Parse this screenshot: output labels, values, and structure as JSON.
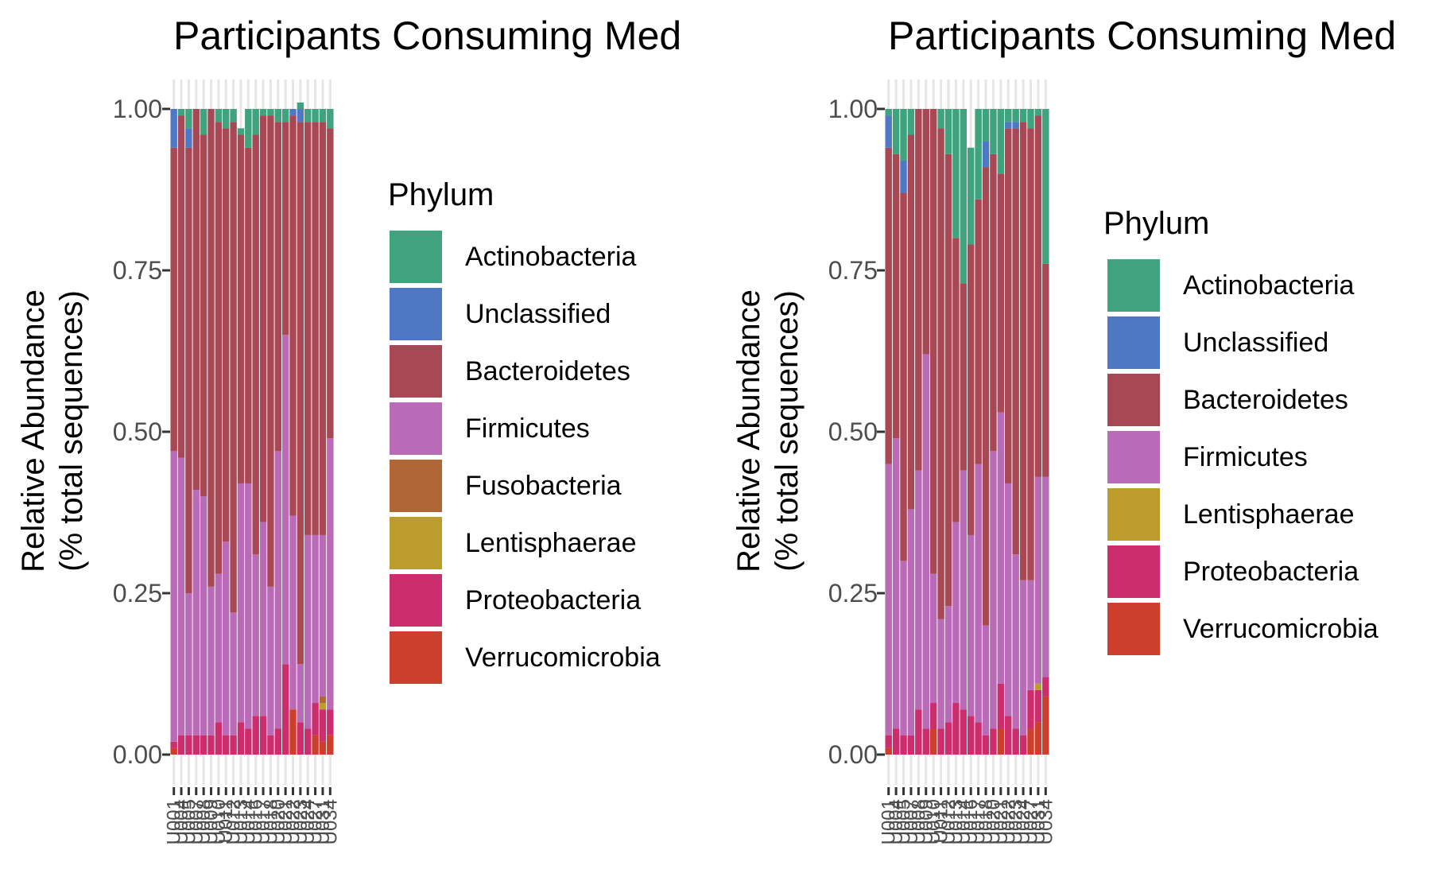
{
  "chart_data": [
    {
      "type": "bar",
      "stacked": true,
      "title": "Participants Consuming Med",
      "ylabel_line1": "Relative Abundance",
      "ylabel_line2": "(% total sequences)",
      "ylim": [
        0,
        1
      ],
      "yticks": [
        "0.00",
        "0.25",
        "0.50",
        "0.75",
        "1.00"
      ],
      "grid": true,
      "legend_position": "right",
      "legend_title": "Phylum",
      "legend": [
        {
          "name": "Actinobacteria",
          "color": "#3FA37D"
        },
        {
          "name": "Unclassified",
          "color": "#4F78C4"
        },
        {
          "name": "Bacteroidetes",
          "color": "#A84855"
        },
        {
          "name": "Firmicutes",
          "color": "#B96BB7"
        },
        {
          "name": "Fusobacteria",
          "color": "#B06636"
        },
        {
          "name": "Lentisphaerae",
          "color": "#BB9C2D"
        },
        {
          "name": "Proteobacteria",
          "color": "#CC2D6C"
        },
        {
          "name": "Verrucomicrobia",
          "color": "#CC3F2C"
        }
      ],
      "stack_order_bottom_to_top": [
        "Verrucomicrobia",
        "Proteobacteria",
        "Lentisphaerae",
        "Fusobacteria",
        "Firmicutes",
        "Bacteroidetes",
        "Unclassified",
        "Actinobacteria"
      ],
      "categories": [
        "U001",
        "U004",
        "U005",
        "U007",
        "U008",
        "U009",
        "U010",
        "U011",
        "U012",
        "U013",
        "U014",
        "U016",
        "U017",
        "U018",
        "U020",
        "U021",
        "U022",
        "U023",
        "U024",
        "U027",
        "U031",
        "U034"
      ],
      "series": [
        {
          "name": "Verrucomicrobia",
          "values": [
            0.01,
            0.0,
            0.0,
            0.0,
            0.0,
            0.0,
            0.0,
            0.0,
            0.0,
            0.0,
            0.0,
            0.0,
            0.0,
            0.0,
            0.0,
            0.0,
            0.07,
            0.0,
            0.0,
            0.03,
            0.02,
            0.03
          ]
        },
        {
          "name": "Proteobacteria",
          "values": [
            0.01,
            0.03,
            0.03,
            0.03,
            0.03,
            0.03,
            0.05,
            0.03,
            0.03,
            0.05,
            0.04,
            0.06,
            0.06,
            0.03,
            0.04,
            0.14,
            0.0,
            0.05,
            0.04,
            0.05,
            0.05,
            0.04
          ]
        },
        {
          "name": "Lentisphaerae",
          "values": [
            0,
            0,
            0,
            0,
            0,
            0,
            0,
            0,
            0,
            0,
            0,
            0,
            0,
            0,
            0,
            0,
            0,
            0,
            0,
            0,
            0.01,
            0
          ]
        },
        {
          "name": "Fusobacteria",
          "values": [
            0,
            0,
            0,
            0,
            0,
            0,
            0,
            0,
            0,
            0,
            0,
            0,
            0,
            0,
            0,
            0,
            0,
            0,
            0,
            0,
            0.01,
            0
          ]
        },
        {
          "name": "Firmicutes",
          "values": [
            0.45,
            0.43,
            0.22,
            0.38,
            0.37,
            0.23,
            0.23,
            0.3,
            0.19,
            0.37,
            0.38,
            0.25,
            0.3,
            0.23,
            0.43,
            0.51,
            0.3,
            0.09,
            0.3,
            0.26,
            0.25,
            0.42
          ]
        },
        {
          "name": "Bacteroidetes",
          "values": [
            0.47,
            0.53,
            0.69,
            0.59,
            0.56,
            0.74,
            0.7,
            0.64,
            0.76,
            0.54,
            0.52,
            0.65,
            0.63,
            0.73,
            0.51,
            0.33,
            0.62,
            0.84,
            0.64,
            0.64,
            0.64,
            0.48
          ]
        },
        {
          "name": "Unclassified",
          "values": [
            0.06,
            0.0,
            0.03,
            0.0,
            0.0,
            0.0,
            0.0,
            0.0,
            0.0,
            0.0,
            0.0,
            0.0,
            0.0,
            0.0,
            0.0,
            0.0,
            0.01,
            0.02,
            0.0,
            0.0,
            0.0,
            0.0
          ]
        },
        {
          "name": "Actinobacteria",
          "values": [
            0.0,
            0.01,
            0.03,
            0.0,
            0.04,
            0.0,
            0.02,
            0.03,
            0.02,
            0.01,
            0.06,
            0.04,
            0.01,
            0.01,
            0.02,
            0.02,
            0.0,
            0.01,
            0.02,
            0.02,
            0.02,
            0.03
          ]
        }
      ]
    },
    {
      "type": "bar",
      "stacked": true,
      "title": "Participants Consuming Med",
      "ylabel_line1": "Relative Abundance",
      "ylabel_line2": "(% total sequences)",
      "ylim": [
        0,
        1
      ],
      "yticks": [
        "0.00",
        "0.25",
        "0.50",
        "0.75",
        "1.00"
      ],
      "grid": true,
      "legend_position": "right",
      "legend_title": "Phylum",
      "legend": [
        {
          "name": "Actinobacteria",
          "color": "#3FA37D"
        },
        {
          "name": "Unclassified",
          "color": "#4F78C4"
        },
        {
          "name": "Bacteroidetes",
          "color": "#A84855"
        },
        {
          "name": "Firmicutes",
          "color": "#B96BB7"
        },
        {
          "name": "Lentisphaerae",
          "color": "#BB9C2D"
        },
        {
          "name": "Proteobacteria",
          "color": "#CC2D6C"
        },
        {
          "name": "Verrucomicrobia",
          "color": "#CC3F2C"
        }
      ],
      "stack_order_bottom_to_top": [
        "Verrucomicrobia",
        "Proteobacteria",
        "Lentisphaerae",
        "Firmicutes",
        "Bacteroidetes",
        "Unclassified",
        "Actinobacteria"
      ],
      "categories": [
        "U001",
        "U004",
        "U005",
        "U007",
        "U008",
        "U009",
        "U010",
        "U011",
        "U012",
        "U013",
        "U014",
        "U016",
        "U017",
        "U018",
        "U020",
        "U021",
        "U022",
        "U023",
        "U024",
        "U027",
        "U031",
        "U034"
      ],
      "series": [
        {
          "name": "Verrucomicrobia",
          "values": [
            0.01,
            0.0,
            0.0,
            0.0,
            0.0,
            0.0,
            0.04,
            0.0,
            0.0,
            0.0,
            0.0,
            0.0,
            0.0,
            0.0,
            0.0,
            0.04,
            0.0,
            0.0,
            0.0,
            0.04,
            0.05,
            0.09
          ]
        },
        {
          "name": "Proteobacteria",
          "values": [
            0.02,
            0.04,
            0.03,
            0.03,
            0.07,
            0.04,
            0.04,
            0.04,
            0.05,
            0.08,
            0.07,
            0.06,
            0.05,
            0.03,
            0.04,
            0.07,
            0.06,
            0.04,
            0.03,
            0.06,
            0.05,
            0.03
          ]
        },
        {
          "name": "Lentisphaerae",
          "values": [
            0,
            0,
            0,
            0,
            0,
            0,
            0,
            0,
            0,
            0,
            0,
            0,
            0,
            0,
            0,
            0,
            0,
            0,
            0,
            0,
            0.01,
            0
          ]
        },
        {
          "name": "Firmicutes",
          "values": [
            0.42,
            0.45,
            0.27,
            0.35,
            0.37,
            0.58,
            0.2,
            0.17,
            0.18,
            0.28,
            0.37,
            0.28,
            0.4,
            0.17,
            0.43,
            0.42,
            0.36,
            0.27,
            0.24,
            0.17,
            0.32,
            0.31
          ]
        },
        {
          "name": "Bacteroidetes",
          "values": [
            0.49,
            0.44,
            0.57,
            0.58,
            0.56,
            0.38,
            0.72,
            0.76,
            0.7,
            0.44,
            0.29,
            0.45,
            0.41,
            0.71,
            0.46,
            0.37,
            0.55,
            0.66,
            0.71,
            0.7,
            0.56,
            0.33
          ]
        },
        {
          "name": "Unclassified",
          "values": [
            0.05,
            0.0,
            0.05,
            0.0,
            0.0,
            0.0,
            0.0,
            0.0,
            0.0,
            0.0,
            0.0,
            0.0,
            0.0,
            0.04,
            0.0,
            0.0,
            0.01,
            0.01,
            0.0,
            0.0,
            0.0,
            0.0
          ]
        },
        {
          "name": "Actinobacteria",
          "values": [
            0.01,
            0.07,
            0.08,
            0.04,
            0.0,
            0.0,
            0.0,
            0.03,
            0.07,
            0.2,
            0.27,
            0.15,
            0.14,
            0.05,
            0.07,
            0.1,
            0.02,
            0.02,
            0.02,
            0.03,
            0.01,
            0.24
          ]
        }
      ]
    }
  ]
}
